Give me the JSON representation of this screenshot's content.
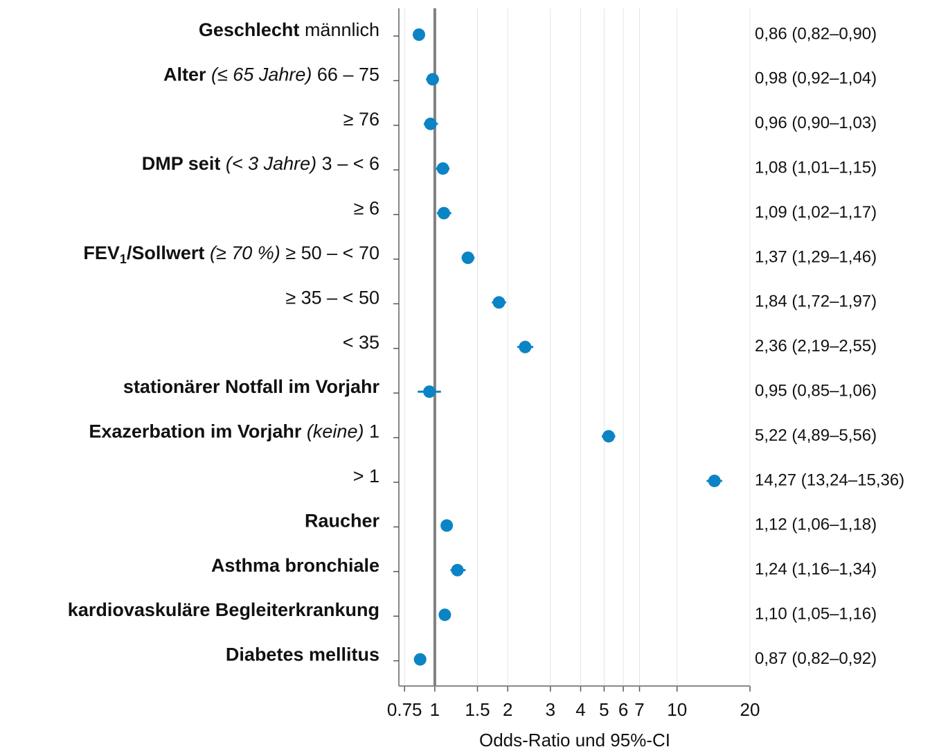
{
  "chart_data": {
    "type": "forest",
    "x_label": "Odds-Ratio und 95%-CI",
    "log_x": true,
    "grid": true,
    "color": "#0a84c4",
    "reference_value": 1,
    "xlim": [
      0.72,
      20
    ],
    "xticks": [
      0.75,
      1,
      1.5,
      2,
      3,
      4,
      5,
      6,
      7,
      10,
      20
    ],
    "rows": [
      {
        "group": "Geschlecht",
        "level": "männlich"
      },
      {
        "group": "Alter",
        "reference": "(≤ 65 Jahre)",
        "level": "66 – 75"
      },
      {
        "level": "≥ 76"
      },
      {
        "group": "DMP seit",
        "reference": "(< 3 Jahre)",
        "level": "3 – < 6"
      },
      {
        "level": "≥ 6"
      },
      {
        "group": "FEV",
        "group_sub": "1",
        "group_rest": "/Sollwert",
        "reference": "(≥ 70 %)",
        "level": "≥ 50 – < 70"
      },
      {
        "level": "≥ 35 – < 50"
      },
      {
        "level": "< 35"
      },
      {
        "group": "stationärer Notfall im Vorjahr"
      },
      {
        "group": "Exazerbation im Vorjahr",
        "reference": "(keine)",
        "level": "1"
      },
      {
        "level": "> 1"
      },
      {
        "group": "Raucher"
      },
      {
        "group": "Asthma bronchiale"
      },
      {
        "group": "kardiovaskuläre Begleiterkrankung"
      },
      {
        "group": "Diabetes mellitus"
      }
    ],
    "values": [
      0.86,
      0.98,
      0.96,
      1.08,
      1.09,
      1.37,
      1.84,
      2.36,
      0.95,
      5.22,
      14.27,
      1.12,
      1.24,
      1.1,
      0.87
    ],
    "lower": [
      0.82,
      0.92,
      0.9,
      1.01,
      1.02,
      1.29,
      1.72,
      2.19,
      0.85,
      4.89,
      13.24,
      1.06,
      1.16,
      1.05,
      0.82
    ],
    "upper": [
      0.9,
      1.04,
      1.03,
      1.15,
      1.17,
      1.46,
      1.97,
      2.55,
      1.06,
      5.56,
      15.36,
      1.18,
      1.34,
      1.16,
      0.92
    ],
    "value_labels": [
      "0,86 (0,82–0,90)",
      "0,98 (0,92–1,04)",
      "0,96 (0,90–1,03)",
      "1,08 (1,01–1,15)",
      "1,09 (1,02–1,17)",
      "1,37 (1,29–1,46)",
      "1,84 (1,72–1,97)",
      "2,36 (2,19–2,55)",
      "0,95 (0,85–1,06)",
      "5,22 (4,89–5,56)",
      "14,27 (13,24–15,36)",
      "1,12 (1,06–1,18)",
      "1,24 (1,16–1,34)",
      "1,10 (1,05–1,16)",
      "0,87 (0,82–0,92)"
    ]
  }
}
